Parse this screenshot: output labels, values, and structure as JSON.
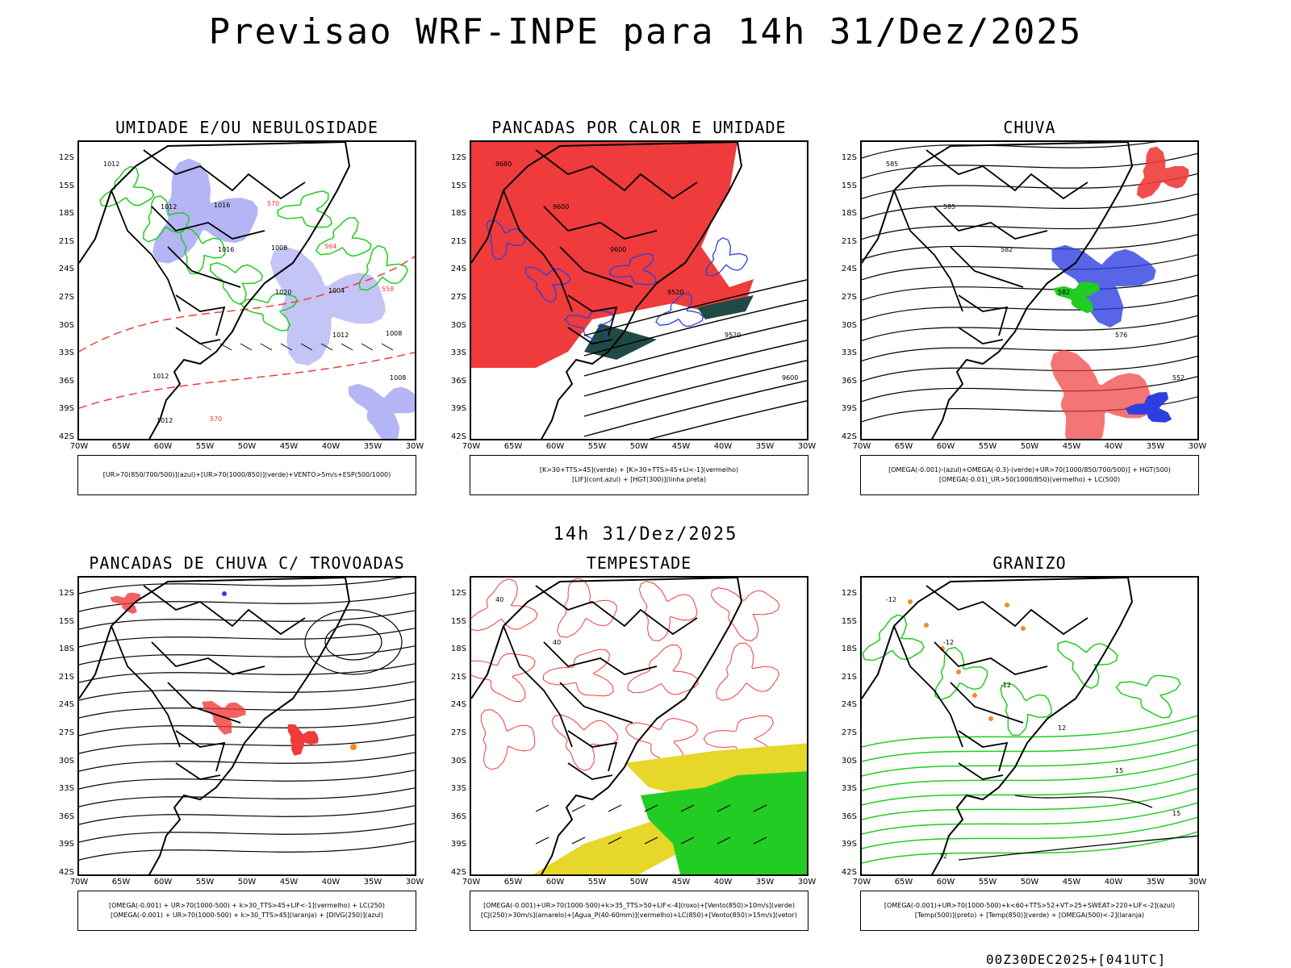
{
  "title": "Previsao WRF-INPE  para 14h 31/Dez/2025",
  "subtitle": "14h 31/Dez/2025",
  "footer": "00Z30DEC2025+[041UTC]",
  "lat_labels": [
    "12S",
    "15S",
    "18S",
    "21S",
    "24S",
    "27S",
    "30S",
    "33S",
    "36S",
    "39S",
    "42S"
  ],
  "lon_labels": [
    "70W",
    "65W",
    "60W",
    "55W",
    "50W",
    "45W",
    "40W",
    "35W",
    "30W"
  ],
  "panels": [
    {
      "title": "UMIDADE E/OU NEBULOSIDADE",
      "legend": [
        "[UR>70(850/700/500)](azul)+[UR>70(1000/850)](verde)+VENTO>5m/s+ESP(500/1000)"
      ],
      "labels": [
        "1012",
        "1012",
        "1016",
        "1020",
        "1012",
        "1008",
        "1012",
        "1016",
        "1008",
        "1004",
        "1008",
        "1012",
        "570",
        "570",
        "564",
        "558"
      ]
    },
    {
      "title": "PANCADAS POR CALOR E UMIDADE",
      "legend": [
        "[K>30+TTS>45](verde) + [K>30+TTS>45+LI<-1](vermelho)",
        "[LIF](cont.azul) + [HGT(300)](linha preta)"
      ],
      "labels": [
        "9680",
        "9600",
        "9600",
        "9520",
        "9520",
        "9600"
      ]
    },
    {
      "title": "CHUVA",
      "legend": [
        "[OMEGA(-0.001)-(azul)+OMEGA(-0.3)-(verde)+UR>70(1000/850/700/500)] + HGT(500)",
        "[OMEGA(-0.01)_UR>50(1000/850)(vermelho) + LC(500)"
      ],
      "labels": [
        "585",
        "585",
        "582",
        "582",
        "576",
        "552"
      ]
    },
    {
      "title": "PANCADAS DE CHUVA C/ TROVOADAS",
      "legend": [
        "[OMEGA(-0.001) + UR>70(1000-500) + k>30_TTS>45+LIF<-1](vermelho) + LC(250)",
        "[OMEGA(-0.001) + UR>70(1000-500) + k>30_TTS>45](laranja) + [DIVG(250)](azul)"
      ],
      "labels": []
    },
    {
      "title": "TEMPESTADE",
      "legend": [
        "[OMEGA(-0.001)+UR>70(1000-500)+k>35_TTS>50+LIF<-4](roxo)+[Vento(850)>10m/s](verde)",
        "[CJ(250)>30m/s](amarelo)+[Agua_P(40-60mm)](vermelho)+LC(850)+[Vento(850)>15m/s](vetor)"
      ],
      "labels": [
        "40",
        "40"
      ]
    },
    {
      "title": "GRANIZO",
      "legend": [
        "[OMEGA(-0.001)+UR>70(1000-500)+k<60+TTS>52+VT>25+SWEAT>220+LIF<-2](azul)",
        "[Temp(500)](preto) + [Temp(850)](verde) + [OMEGA(500)<-2](laranja)"
      ],
      "labels": [
        "-12",
        "-12",
        "-12",
        "12",
        "15",
        "15",
        "12"
      ]
    }
  ],
  "colors": {
    "red": "#ef3b3b",
    "blue": "#2d3fe0",
    "lavender": "#b5b5f5",
    "green": "#22cc22",
    "yellow": "#e6d72a",
    "orange": "#f08a2a",
    "darkgreen": "#1f4a45"
  }
}
